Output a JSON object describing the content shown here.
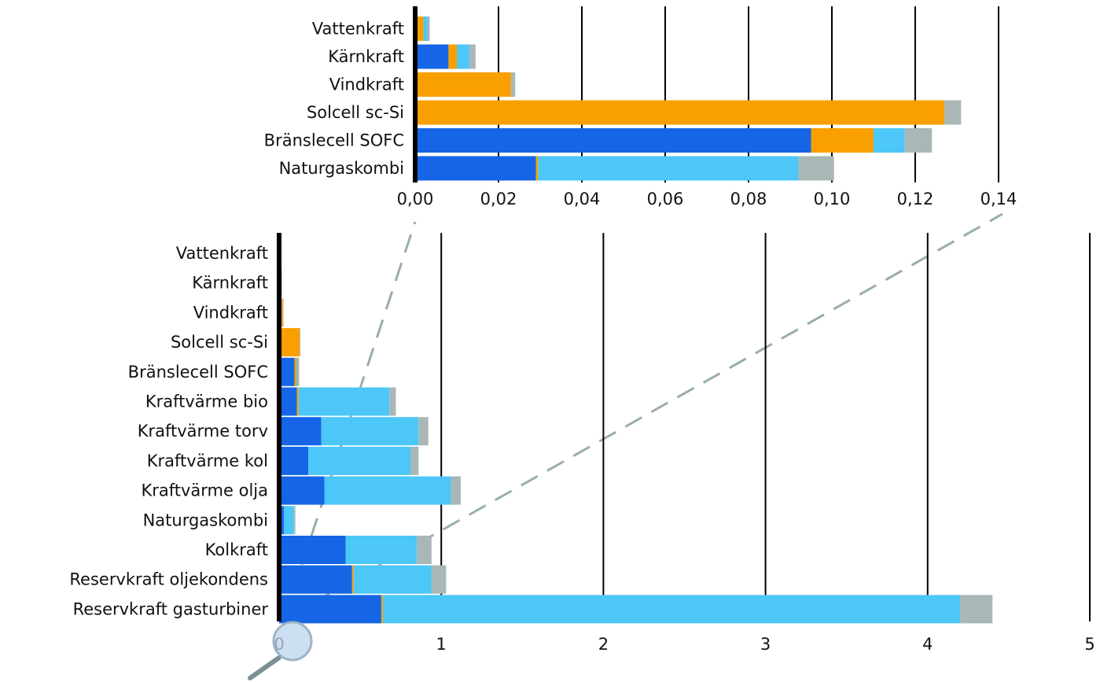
{
  "colors": {
    "dark_blue": "#1565e6",
    "orange": "#f9a000",
    "light_blue": "#4cc7f7",
    "grey": "#a9b7b7",
    "axis": "#000000",
    "gridline": "#000000",
    "zoom_line": "#99adad",
    "magnifier": "#bcd6ec"
  },
  "chart_data": [
    {
      "id": "zoomed",
      "type": "bar",
      "orientation": "horizontal",
      "stacked": true,
      "title": "",
      "xlabel": "",
      "ylabel": "",
      "xlim": [
        0,
        0.14
      ],
      "x_ticks": [
        0,
        0.02,
        0.04,
        0.06,
        0.08,
        0.1,
        0.12,
        0.14
      ],
      "x_tick_labels": [
        "0,00",
        "0,02",
        "0,04",
        "0,06",
        "0,08",
        "0,10",
        "0,12",
        "0,14"
      ],
      "grid": "vertical lines at ticks",
      "legend": "none",
      "categories": [
        "Vattenkraft",
        "Kärnkraft",
        "Vindkraft",
        "Solcell sc-Si",
        "Bränslecell SOFC",
        "Naturgaskombi"
      ],
      "series": [
        {
          "color": "dark_blue",
          "values": [
            0.0005,
            0.008,
            0.0,
            0.0,
            0.095,
            0.029
          ]
        },
        {
          "color": "orange",
          "values": [
            0.0015,
            0.002,
            0.023,
            0.127,
            0.015,
            0.0005
          ]
        },
        {
          "color": "light_blue",
          "values": [
            0.001,
            0.003,
            0.0,
            0.0,
            0.0075,
            0.0625
          ]
        },
        {
          "color": "grey",
          "values": [
            0.0005,
            0.0015,
            0.001,
            0.004,
            0.0065,
            0.0085
          ]
        }
      ]
    },
    {
      "id": "full",
      "type": "bar",
      "orientation": "horizontal",
      "stacked": true,
      "title": "",
      "xlabel": "",
      "ylabel": "",
      "xlim": [
        0,
        5
      ],
      "x_ticks": [
        0,
        1,
        2,
        3,
        4,
        5
      ],
      "x_tick_labels": [
        "0",
        "1",
        "2",
        "3",
        "4",
        "5"
      ],
      "grid": "vertical lines at ticks",
      "legend": "none",
      "categories": [
        "Vattenkraft",
        "Kärnkraft",
        "Vindkraft",
        "Solcell sc-Si",
        "Bränslecell SOFC",
        "Kraftvärme bio",
        "Kraftvärme torv",
        "Kraftvärme kol",
        "Kraftvärme olja",
        "Naturgaskombi",
        "Kolkraft",
        "Reservkraft oljekondens",
        "Reservkraft gasturbiner"
      ],
      "series": [
        {
          "color": "dark_blue",
          "values": [
            0.002,
            0.008,
            0.0,
            0.0,
            0.095,
            0.11,
            0.26,
            0.18,
            0.28,
            0.029,
            0.41,
            0.45,
            0.63
          ]
        },
        {
          "color": "orange",
          "values": [
            0.003,
            0.002,
            0.023,
            0.127,
            0.015,
            0.01,
            0.0,
            0.0,
            0.0,
            0.0,
            0.0,
            0.01,
            0.01
          ]
        },
        {
          "color": "light_blue",
          "values": [
            0.001,
            0.003,
            0.0,
            0.0,
            0.0075,
            0.56,
            0.6,
            0.63,
            0.78,
            0.0625,
            0.44,
            0.48,
            3.56
          ]
        },
        {
          "color": "grey",
          "values": [
            0.001,
            0.002,
            0.001,
            0.004,
            0.0065,
            0.04,
            0.06,
            0.05,
            0.06,
            0.0085,
            0.09,
            0.09,
            0.2
          ]
        }
      ]
    }
  ]
}
